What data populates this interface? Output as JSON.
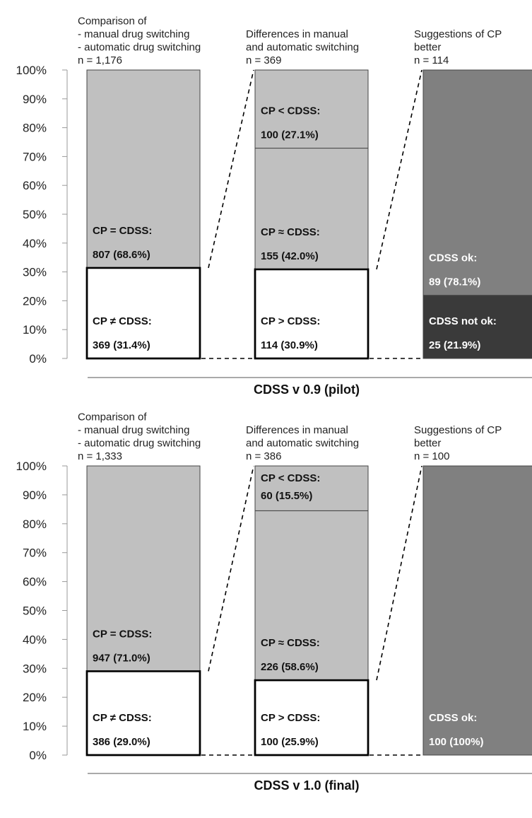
{
  "chart_data": [
    {
      "type": "bar",
      "title": "CDSS v 0.9 (pilot)",
      "y_axis": {
        "range": [
          0,
          100
        ],
        "ticks": [
          "0%",
          "10%",
          "20%",
          "30%",
          "40%",
          "50%",
          "60%",
          "70%",
          "80%",
          "90%",
          "100%"
        ]
      },
      "columns": [
        {
          "header": [
            "Comparison of",
            "- manual drug switching",
            "- automatic drug switching",
            "n = 1,176"
          ],
          "segments": [
            {
              "label": "CP ≠ CDSS:",
              "value_text": "369 (31.4%)",
              "value": 31.4,
              "fill": "#ffffff",
              "text_color": "#111111",
              "outlined": true
            },
            {
              "label": "CP = CDSS:",
              "value_text": "807 (68.6%)",
              "value": 68.6,
              "fill": "#c0c0c0",
              "text_color": "#111111",
              "outlined": false
            }
          ]
        },
        {
          "header": [
            "Differences in manual",
            "and automatic switching",
            "n = 369"
          ],
          "segments": [
            {
              "label": "CP > CDSS:",
              "value_text": "114 (30.9%)",
              "value": 30.9,
              "fill": "#ffffff",
              "text_color": "#111111",
              "outlined": true
            },
            {
              "label": "CP ≈ CDSS:",
              "value_text": "155 (42.0%)",
              "value": 42.0,
              "fill": "#c0c0c0",
              "text_color": "#111111",
              "outlined": false
            },
            {
              "label": "CP < CDSS:",
              "value_text": "100 (27.1%)",
              "value": 27.1,
              "fill": "#c0c0c0",
              "text_color": "#111111",
              "outlined": false
            }
          ]
        },
        {
          "header": [
            "Suggestions of CP",
            "better",
            "n = 114"
          ],
          "segments": [
            {
              "label": "CDSS not ok:",
              "value_text": "25 (21.9%)",
              "value": 21.9,
              "fill": "#3a3a3a",
              "text_color": "#ffffff",
              "outlined": false
            },
            {
              "label": "CDSS ok:",
              "value_text": "89 (78.1%)",
              "value": 78.1,
              "fill": "#808080",
              "text_color": "#ffffff",
              "outlined": false
            }
          ]
        }
      ]
    },
    {
      "type": "bar",
      "title": "CDSS v 1.0 (final)",
      "y_axis": {
        "range": [
          0,
          100
        ],
        "ticks": [
          "0%",
          "10%",
          "20%",
          "30%",
          "40%",
          "50%",
          "60%",
          "70%",
          "80%",
          "90%",
          "100%"
        ]
      },
      "columns": [
        {
          "header": [
            "Comparison of",
            "- manual drug switching",
            "- automatic drug switching",
            "n = 1,333"
          ],
          "segments": [
            {
              "label": "CP ≠ CDSS:",
              "value_text": "386 (29.0%)",
              "value": 29.0,
              "fill": "#ffffff",
              "text_color": "#111111",
              "outlined": true
            },
            {
              "label": "CP = CDSS:",
              "value_text": "947 (71.0%)",
              "value": 71.0,
              "fill": "#c0c0c0",
              "text_color": "#111111",
              "outlined": false
            }
          ]
        },
        {
          "header": [
            "Differences in manual",
            "and automatic switching",
            "n = 386"
          ],
          "segments": [
            {
              "label": "CP > CDSS:",
              "value_text": "100 (25.9%)",
              "value": 25.9,
              "fill": "#ffffff",
              "text_color": "#111111",
              "outlined": true
            },
            {
              "label": "CP ≈ CDSS:",
              "value_text": "226 (58.6%)",
              "value": 58.6,
              "fill": "#c0c0c0",
              "text_color": "#111111",
              "outlined": false
            },
            {
              "label": "CP < CDSS:",
              "value_text": "60 (15.5%)",
              "value": 15.5,
              "fill": "#c0c0c0",
              "text_color": "#111111",
              "outlined": false
            }
          ]
        },
        {
          "header": [
            "Suggestions of CP",
            "better",
            "n = 100"
          ],
          "segments": [
            {
              "label": "CDSS ok:",
              "value_text": "100 (100%)",
              "value": 100,
              "fill": "#808080",
              "text_color": "#ffffff",
              "outlined": false
            }
          ]
        }
      ]
    }
  ]
}
